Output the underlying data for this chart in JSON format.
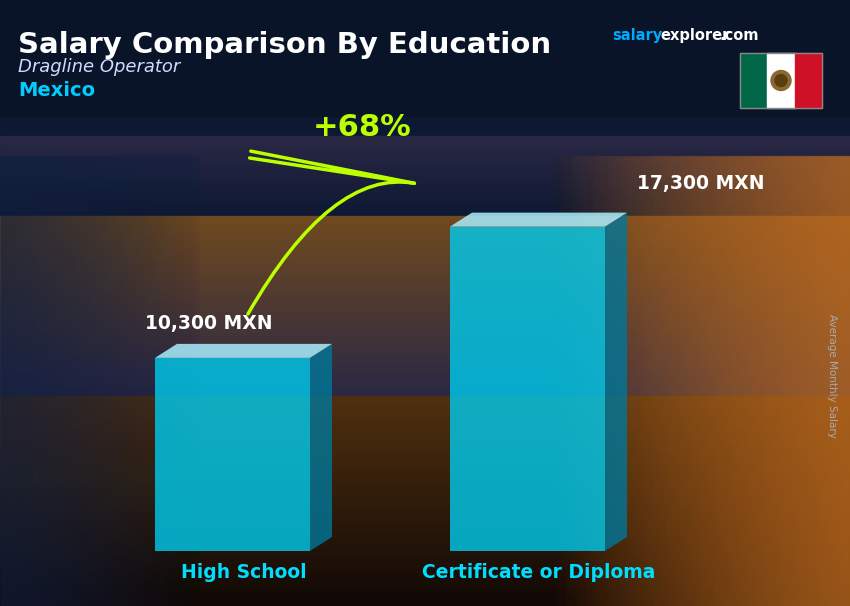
{
  "title": "Salary Comparison By Education",
  "subtitle_job": "Dragline Operator",
  "subtitle_country": "Mexico",
  "categories": [
    "High School",
    "Certificate or Diploma"
  ],
  "values": [
    10300,
    17300
  ],
  "value_labels": [
    "10,300 MXN",
    "17,300 MXN"
  ],
  "pct_change": "+68%",
  "bar_color_face": "#00CCEE",
  "bar_color_light": "#AAEEFF",
  "bar_color_dark": "#007799",
  "label_color_cat": "#00DDFF",
  "label_color_val": "#FFFFFF",
  "pct_color": "#BBFF00",
  "ylabel_text": "Average Monthly Salary",
  "ylabel_color": "#aaaaaa",
  "title_color": "#FFFFFF",
  "subtitle_job_color": "#CCDDFF",
  "subtitle_country_color": "#00CCFF",
  "header_bg": "#0d1b3e",
  "bg_colors": [
    "#0d1632",
    "#162040",
    "#1a2a4a",
    "#1e2e50",
    "#2a3050",
    "#3a3040",
    "#4a3830",
    "#6a4820",
    "#7a5020",
    "#8a5a18",
    "#7a6020",
    "#6a5530"
  ],
  "website_salary_color": "#00AAFF",
  "website_rest_color": "#FFFFFF"
}
